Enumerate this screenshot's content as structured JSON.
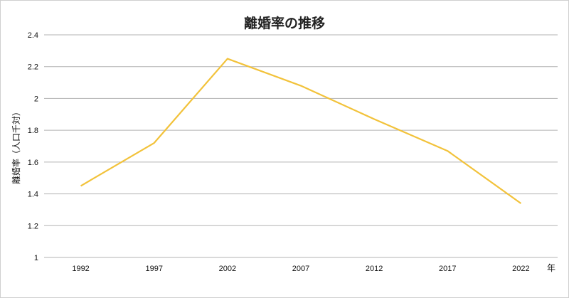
{
  "chart_data": {
    "type": "line",
    "title": "離婚率の推移",
    "xlabel": "年",
    "ylabel": "離婚率（人口千対）",
    "categories": [
      "1992",
      "1997",
      "2002",
      "2007",
      "2012",
      "2017",
      "2022"
    ],
    "series": [
      {
        "values": [
          1.45,
          1.72,
          2.25,
          2.08,
          1.87,
          1.67,
          1.34
        ]
      }
    ],
    "ylim": [
      1,
      2.4
    ],
    "yticks": [
      "1",
      "1.2",
      "1.4",
      "1.6",
      "1.8",
      "2",
      "2.2",
      "2.4"
    ],
    "grid": true,
    "line_color": "#f2c23a",
    "grid_color": "#b3b3b3"
  }
}
